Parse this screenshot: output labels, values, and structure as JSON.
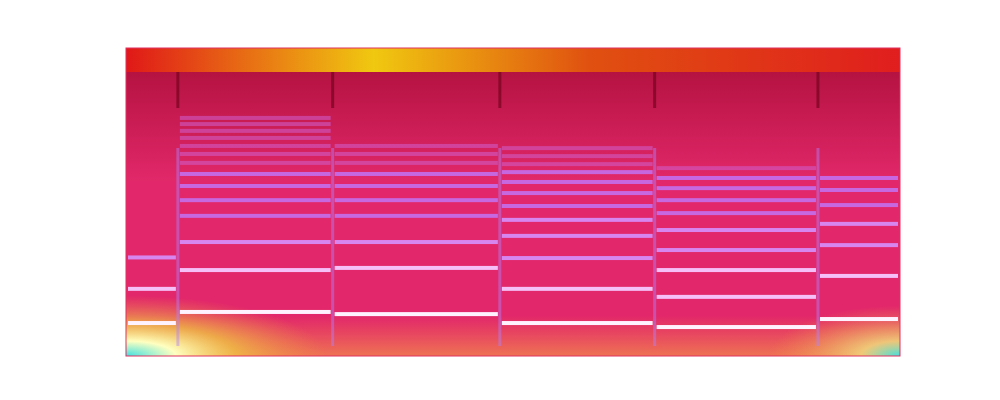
{
  "chart_data": {
    "type": "spectrogram",
    "tick_labels": false,
    "xlim": [
      0,
      100
    ],
    "ylim": [
      0,
      100
    ],
    "segments": [
      {
        "start": 0,
        "end": 6.7,
        "harmonics": [
          10.7,
          21.8,
          32.0
        ]
      },
      {
        "start": 6.7,
        "end": 26.7,
        "harmonics": [
          14.3,
          27.9,
          37.0,
          45.5,
          50.6,
          55.2,
          59.1,
          62.7,
          65.6,
          68.2,
          70.8,
          73.1,
          75.3,
          77.3
        ]
      },
      {
        "start": 26.7,
        "end": 48.3,
        "harmonics": [
          13.6,
          28.6,
          37.0,
          45.5,
          50.6,
          55.2,
          59.1,
          62.7,
          65.6,
          68.2
        ]
      },
      {
        "start": 48.3,
        "end": 68.3,
        "harmonics": [
          10.7,
          21.8,
          31.8,
          39.0,
          44.2,
          48.7,
          52.9,
          56.5,
          59.7,
          62.3,
          64.9,
          67.5
        ]
      },
      {
        "start": 68.3,
        "end": 89.4,
        "harmonics": [
          9.4,
          19.2,
          27.9,
          34.4,
          40.9,
          46.4,
          50.6,
          54.5,
          57.8,
          61.0
        ]
      },
      {
        "start": 89.4,
        "end": 100,
        "harmonics": [
          12.0,
          26.0,
          36.0,
          42.9,
          49.0,
          53.9,
          57.8
        ]
      }
    ]
  }
}
